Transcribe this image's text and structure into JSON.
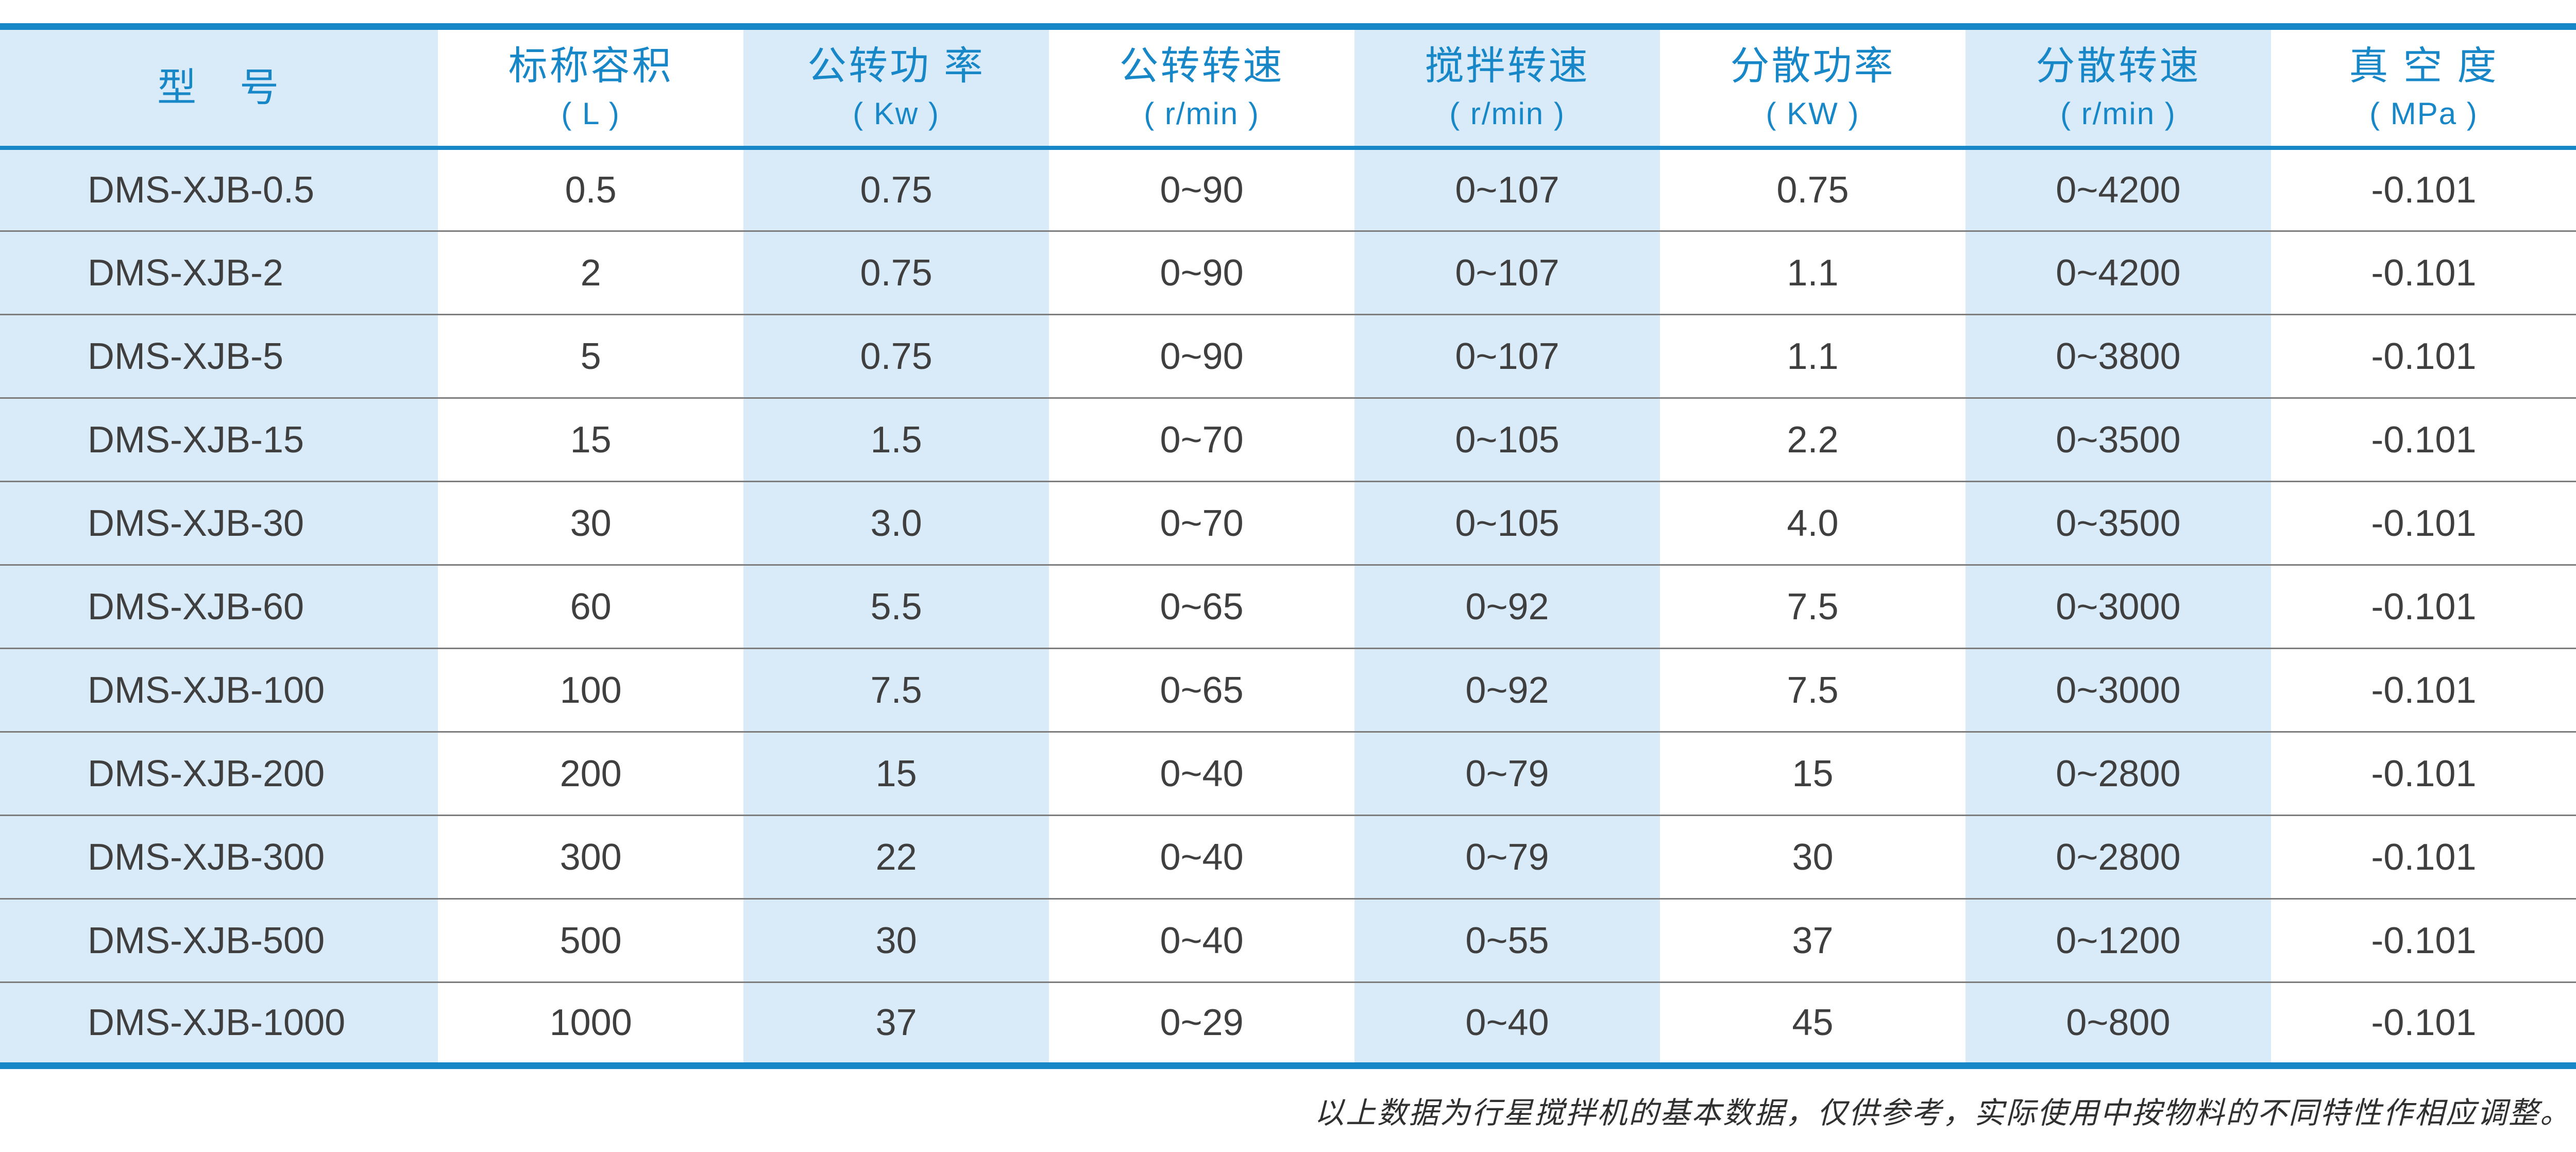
{
  "page": {
    "footnote": "以上数据为行星搅拌机的基本数据，仅供参考，实际使用中按物料的不同特性作相应调整。"
  },
  "colors": {
    "accent_blue": "#1787c8",
    "stripe_light_blue": "#d9eaf8",
    "body_text": "#3f3f3f",
    "row_divider_gray": "#7d7d7d"
  },
  "table": {
    "columns": [
      {
        "title": "型　号",
        "unit": ""
      },
      {
        "title": "标称容积",
        "unit": "( L )"
      },
      {
        "title": "公转功 率",
        "unit": "( Kw )"
      },
      {
        "title": "公转转速",
        "unit": "( r/min )"
      },
      {
        "title": "搅拌转速",
        "unit": "( r/min )"
      },
      {
        "title": "分散功率",
        "unit": "( KW )"
      },
      {
        "title": "分散转速",
        "unit": "( r/min )"
      },
      {
        "title": "真 空 度",
        "unit": "( MPa )"
      }
    ],
    "rows": [
      [
        "DMS-XJB-0.5",
        "0.5",
        "0.75",
        "0~90",
        "0~107",
        "0.75",
        "0~4200",
        "-0.101"
      ],
      [
        "DMS-XJB-2",
        "2",
        "0.75",
        "0~90",
        "0~107",
        "1.1",
        "0~4200",
        "-0.101"
      ],
      [
        "DMS-XJB-5",
        "5",
        "0.75",
        "0~90",
        "0~107",
        "1.1",
        "0~3800",
        "-0.101"
      ],
      [
        "DMS-XJB-15",
        "15",
        "1.5",
        "0~70",
        "0~105",
        "2.2",
        "0~3500",
        "-0.101"
      ],
      [
        "DMS-XJB-30",
        "30",
        "3.0",
        "0~70",
        "0~105",
        "4.0",
        "0~3500",
        "-0.101"
      ],
      [
        "DMS-XJB-60",
        "60",
        "5.5",
        "0~65",
        "0~92",
        "7.5",
        "0~3000",
        "-0.101"
      ],
      [
        "DMS-XJB-100",
        "100",
        "7.5",
        "0~65",
        "0~92",
        "7.5",
        "0~3000",
        "-0.101"
      ],
      [
        "DMS-XJB-200",
        "200",
        "15",
        "0~40",
        "0~79",
        "15",
        "0~2800",
        "-0.101"
      ],
      [
        "DMS-XJB-300",
        "300",
        "22",
        "0~40",
        "0~79",
        "30",
        "0~2800",
        "-0.101"
      ],
      [
        "DMS-XJB-500",
        "500",
        "30",
        "0~40",
        "0~55",
        "37",
        "0~1200",
        "-0.101"
      ],
      [
        "DMS-XJB-1000",
        "1000",
        "37",
        "0~29",
        "0~40",
        "45",
        "0~800",
        "-0.101"
      ]
    ],
    "column_width_percents": [
      17,
      11.857,
      11.857,
      11.857,
      11.857,
      11.857,
      11.857,
      11.858
    ]
  }
}
